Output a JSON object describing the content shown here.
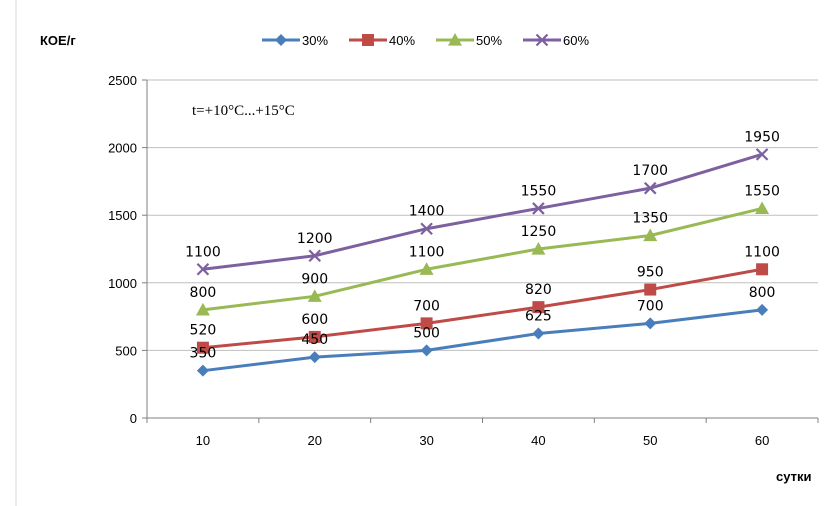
{
  "chart_data": {
    "type": "line",
    "ylabel": "КОЕ/г",
    "xlabel": "сутки",
    "annotation": "t=+10°C...+15°C",
    "x": [
      10,
      20,
      30,
      40,
      50,
      60
    ],
    "ylim": [
      0,
      2500
    ],
    "yticks": [
      0,
      500,
      1000,
      1500,
      2000,
      2500
    ],
    "legend_position": "top",
    "grid": "horizontal",
    "series": [
      {
        "name": "30%",
        "values": [
          350,
          450,
          500,
          625,
          700,
          800
        ],
        "color": "#4A7EBB",
        "marker": "diamond"
      },
      {
        "name": "40%",
        "values": [
          520,
          600,
          700,
          820,
          950,
          1100
        ],
        "color": "#BE4B48",
        "marker": "square"
      },
      {
        "name": "50%",
        "values": [
          800,
          900,
          1100,
          1250,
          1350,
          1550
        ],
        "color": "#98B954",
        "marker": "triangle"
      },
      {
        "name": "60%",
        "values": [
          1100,
          1200,
          1400,
          1550,
          1700,
          1950
        ],
        "color": "#7D60A0",
        "marker": "x"
      }
    ]
  }
}
